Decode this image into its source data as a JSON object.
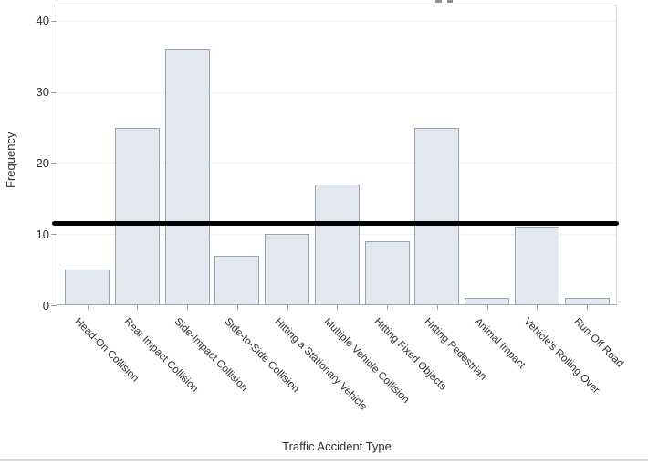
{
  "chart_data": {
    "type": "bar",
    "categories": [
      "Head-On Collision",
      "Rear Impact Collision",
      "Side-Impact Collision",
      "Side-to-Side Collision",
      "Hitting a Stationary Vehicle",
      "Multiple Vehicle Collision",
      "Hitting Fixed Objects",
      "Hitting Pedestrian",
      "Animal Impact",
      "Vehicle's Rolling Over",
      "Run-Off Road"
    ],
    "values": [
      5,
      25,
      36,
      7,
      10,
      17,
      9,
      25,
      1,
      11,
      1
    ],
    "title": "",
    "xlabel": "Traffic Accident Type",
    "ylabel": "Frequency",
    "yticks": [
      0,
      10,
      20,
      30,
      40
    ],
    "ylim": [
      0,
      42
    ],
    "grid": "horizontal-light",
    "legend": "none",
    "reference_line": {
      "value": 11.5,
      "color": "#000000",
      "thickness_px": 5
    },
    "colors": {
      "bar_fill": "#e2e7f0",
      "bar_stroke": "#99a3b1",
      "gridline": "#f0f1f4",
      "axis_line": "#a6adb5",
      "tick": "#9aa1a9",
      "text": "#2e2e2e",
      "clipped_title_fragment": "#8f8f8f",
      "bottom_rule": "#dadada"
    }
  }
}
